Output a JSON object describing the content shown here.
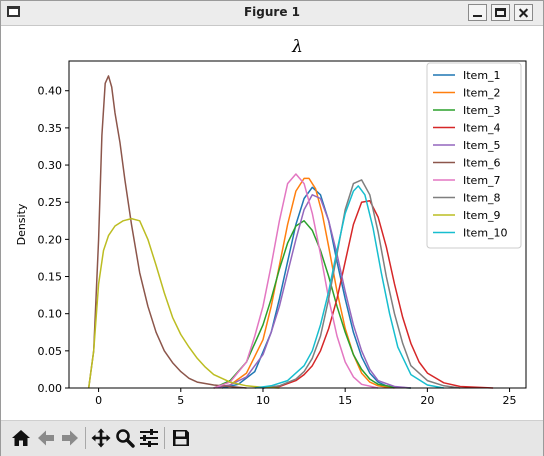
{
  "window": {
    "title": "Figure 1"
  },
  "toolbar": {
    "icons": [
      "home-icon",
      "back-arrow-icon",
      "forward-arrow-icon",
      "pan-icon",
      "zoom-icon",
      "configure-subplots-icon",
      "save-icon"
    ]
  },
  "chart_data": {
    "type": "line",
    "title": "λ",
    "xlabel": "",
    "ylabel": "Density",
    "xlim": [
      -1.8,
      26.0
    ],
    "ylim": [
      0,
      0.44
    ],
    "xticks": [
      0,
      5,
      10,
      15,
      20,
      25
    ],
    "yticks": [
      "0.00",
      "0.05",
      "0.10",
      "0.15",
      "0.20",
      "0.25",
      "0.30",
      "0.35",
      "0.40"
    ],
    "grid": false,
    "legend_position": "top-right",
    "series": [
      {
        "name": "Item_1",
        "color": "#1f77b4",
        "x": [
          7.5,
          8.5,
          9.5,
          10.5,
          11.0,
          11.5,
          12.0,
          12.5,
          13.0,
          13.5,
          14.0,
          14.5,
          15.0,
          15.5,
          16.0,
          16.5,
          17.0,
          17.5,
          18.0,
          19.0
        ],
        "values": [
          0.0,
          0.005,
          0.022,
          0.075,
          0.12,
          0.17,
          0.22,
          0.255,
          0.27,
          0.26,
          0.225,
          0.17,
          0.12,
          0.075,
          0.042,
          0.02,
          0.008,
          0.003,
          0.001,
          0.0
        ]
      },
      {
        "name": "Item_2",
        "color": "#ff7f0e",
        "x": [
          7.0,
          8.0,
          9.0,
          10.0,
          10.5,
          11.0,
          11.5,
          12.0,
          12.5,
          12.8,
          13.2,
          13.6,
          14.0,
          14.5,
          15.0,
          15.5,
          16.0,
          16.5,
          17.0,
          18.0
        ],
        "values": [
          0.0,
          0.004,
          0.02,
          0.065,
          0.11,
          0.165,
          0.22,
          0.265,
          0.282,
          0.282,
          0.268,
          0.235,
          0.19,
          0.13,
          0.08,
          0.045,
          0.02,
          0.008,
          0.003,
          0.0
        ]
      },
      {
        "name": "Item_3",
        "color": "#2ca02c",
        "x": [
          7.0,
          8.0,
          9.0,
          10.0,
          10.5,
          11.0,
          11.5,
          12.0,
          12.5,
          13.0,
          13.5,
          14.0,
          14.5,
          15.0,
          15.5,
          16.0,
          16.5,
          17.0,
          18.0,
          19.0
        ],
        "values": [
          0.0,
          0.01,
          0.035,
          0.085,
          0.12,
          0.16,
          0.195,
          0.218,
          0.225,
          0.212,
          0.185,
          0.15,
          0.11,
          0.075,
          0.045,
          0.025,
          0.012,
          0.005,
          0.001,
          0.0
        ]
      },
      {
        "name": "Item_4",
        "color": "#d62728",
        "x": [
          10.0,
          11.0,
          12.0,
          12.5,
          13.0,
          13.5,
          14.0,
          14.5,
          15.0,
          15.5,
          16.0,
          16.5,
          17.0,
          17.5,
          18.0,
          18.5,
          19.0,
          19.5,
          20.0,
          21.0,
          22.0,
          23.0,
          24.0
        ],
        "values": [
          0.0,
          0.002,
          0.01,
          0.018,
          0.03,
          0.05,
          0.08,
          0.12,
          0.17,
          0.22,
          0.25,
          0.252,
          0.23,
          0.19,
          0.14,
          0.095,
          0.06,
          0.035,
          0.02,
          0.007,
          0.002,
          0.001,
          0.0
        ]
      },
      {
        "name": "Item_5",
        "color": "#9467bd",
        "x": [
          7.0,
          8.0,
          9.0,
          10.0,
          10.5,
          11.0,
          11.5,
          12.0,
          12.5,
          13.0,
          13.5,
          14.0,
          14.5,
          15.0,
          15.5,
          16.0,
          16.5,
          17.0,
          18.0,
          19.0
        ],
        "values": [
          0.0,
          0.004,
          0.015,
          0.045,
          0.075,
          0.11,
          0.155,
          0.2,
          0.24,
          0.26,
          0.255,
          0.225,
          0.18,
          0.13,
          0.085,
          0.05,
          0.025,
          0.01,
          0.002,
          0.0
        ]
      },
      {
        "name": "Item_6",
        "color": "#8c564b",
        "x": [
          -0.6,
          -0.3,
          0.0,
          0.2,
          0.4,
          0.6,
          0.8,
          1.0,
          1.3,
          1.6,
          2.0,
          2.5,
          3.0,
          3.5,
          4.0,
          4.5,
          5.0,
          5.5,
          6.0,
          7.0,
          8.0,
          9.0
        ],
        "values": [
          0.0,
          0.05,
          0.2,
          0.34,
          0.41,
          0.42,
          0.405,
          0.37,
          0.33,
          0.28,
          0.22,
          0.155,
          0.11,
          0.075,
          0.05,
          0.034,
          0.022,
          0.013,
          0.008,
          0.004,
          0.002,
          0.0
        ]
      },
      {
        "name": "Item_7",
        "color": "#e377c2",
        "x": [
          7.0,
          8.0,
          9.0,
          9.5,
          10.0,
          10.5,
          11.0,
          11.5,
          12.0,
          12.5,
          13.0,
          13.5,
          14.0,
          14.5,
          15.0,
          15.5,
          16.0,
          17.0
        ],
        "values": [
          0.0,
          0.008,
          0.035,
          0.07,
          0.11,
          0.165,
          0.225,
          0.275,
          0.288,
          0.275,
          0.235,
          0.18,
          0.12,
          0.07,
          0.035,
          0.015,
          0.005,
          0.0
        ]
      },
      {
        "name": "Item_8",
        "color": "#7f7f7f",
        "x": [
          10.0,
          11.0,
          12.0,
          12.5,
          13.0,
          13.5,
          14.0,
          14.5,
          15.0,
          15.5,
          16.0,
          16.5,
          17.0,
          17.5,
          18.0,
          18.5,
          19.0,
          20.0,
          21.0,
          22.0
        ],
        "values": [
          0.0,
          0.003,
          0.012,
          0.022,
          0.04,
          0.07,
          0.12,
          0.18,
          0.24,
          0.275,
          0.28,
          0.26,
          0.21,
          0.15,
          0.1,
          0.06,
          0.03,
          0.01,
          0.003,
          0.0
        ]
      },
      {
        "name": "Item_9",
        "color": "#bcbd22",
        "x": [
          -0.6,
          -0.3,
          0.0,
          0.3,
          0.6,
          1.0,
          1.5,
          2.0,
          2.5,
          3.0,
          3.5,
          4.0,
          4.5,
          5.0,
          5.5,
          6.0,
          6.5,
          7.0,
          8.0,
          9.0,
          10.0,
          11.0
        ],
        "values": [
          0.0,
          0.05,
          0.14,
          0.185,
          0.205,
          0.218,
          0.225,
          0.228,
          0.225,
          0.2,
          0.165,
          0.128,
          0.095,
          0.072,
          0.055,
          0.04,
          0.028,
          0.018,
          0.008,
          0.003,
          0.001,
          0.0
        ]
      },
      {
        "name": "Item_10",
        "color": "#17becf",
        "x": [
          9.5,
          10.5,
          11.5,
          12.0,
          12.5,
          13.0,
          13.5,
          14.0,
          14.5,
          15.0,
          15.5,
          15.8,
          16.2,
          16.7,
          17.2,
          17.7,
          18.2,
          19.0,
          20.0,
          21.0
        ],
        "values": [
          0.0,
          0.003,
          0.01,
          0.02,
          0.03,
          0.05,
          0.085,
          0.13,
          0.185,
          0.235,
          0.265,
          0.272,
          0.26,
          0.215,
          0.155,
          0.1,
          0.055,
          0.018,
          0.004,
          0.0
        ]
      }
    ]
  }
}
